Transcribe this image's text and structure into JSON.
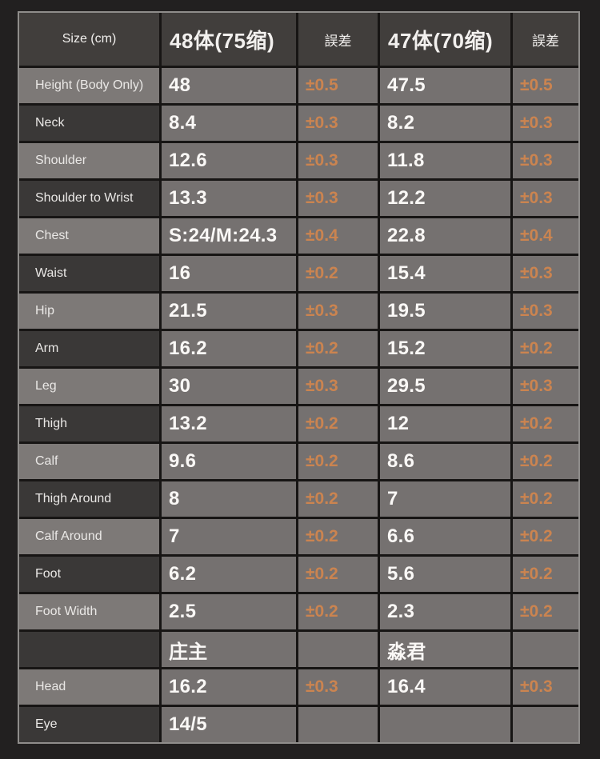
{
  "chart_data": {
    "type": "table",
    "columns": [
      "Size (cm)",
      "48体(75缩)",
      "誤差",
      "47体(70缩)",
      "誤差"
    ],
    "rows": [
      [
        "Height (Body Only)",
        "48",
        "±0.5",
        "47.5",
        "±0.5"
      ],
      [
        "Neck",
        "8.4",
        "±0.3",
        "8.2",
        "±0.3"
      ],
      [
        "Shoulder",
        "12.6",
        "±0.3",
        "11.8",
        "±0.3"
      ],
      [
        "Shoulder to Wrist",
        "13.3",
        "±0.3",
        "12.2",
        "±0.3"
      ],
      [
        "Chest",
        "S:24/M:24.3",
        "±0.4",
        "22.8",
        "±0.4"
      ],
      [
        "Waist",
        "16",
        "±0.2",
        "15.4",
        "±0.3"
      ],
      [
        "Hip",
        "21.5",
        "±0.3",
        "19.5",
        "±0.3"
      ],
      [
        "Arm",
        "16.2",
        "±0.2",
        "15.2",
        "±0.2"
      ],
      [
        "Leg",
        "30",
        "±0.3",
        "29.5",
        "±0.3"
      ],
      [
        "Thigh",
        "13.2",
        "±0.2",
        "12",
        "±0.2"
      ],
      [
        "Calf",
        "9.6",
        "±0.2",
        "8.6",
        "±0.2"
      ],
      [
        "Thigh Around",
        "8",
        "±0.2",
        "7",
        "±0.2"
      ],
      [
        "Calf Around",
        "7",
        "±0.2",
        "6.6",
        "±0.2"
      ],
      [
        "Foot",
        "6.2",
        "±0.2",
        "5.6",
        "±0.2"
      ],
      [
        "Foot Width",
        "2.5",
        "±0.2",
        "2.3",
        "±0.2"
      ],
      [
        "",
        "庄主",
        "",
        "淼君",
        ""
      ],
      [
        "Head",
        "16.2",
        "±0.3",
        "16.4",
        "±0.3"
      ],
      [
        "Eye",
        "14/5",
        "",
        "",
        ""
      ]
    ],
    "layout_hints": {
      "grid": true,
      "alternating_label_column": [
        "light",
        "dark"
      ]
    },
    "colors": {
      "page_bg": "#222020",
      "grid_line": "#171514",
      "outer_border": "#8f8d8b",
      "header_bg": "#413e3c",
      "cell_bg": "#757170",
      "row_label_light": "#7d7977",
      "row_label_dark": "#3a3837",
      "value_text": "#faf8f6",
      "label_text": "#eae8e6",
      "tolerance_text": "#cb8450"
    }
  }
}
